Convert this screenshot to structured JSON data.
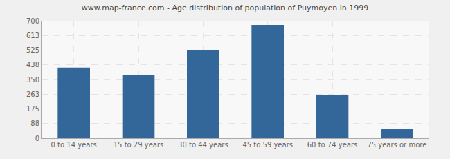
{
  "chart_data": {
    "type": "bar",
    "title": "www.map-france.com - Age distribution of population of Puymoyen in 1999",
    "categories": [
      "0 to 14 years",
      "15 to 29 years",
      "30 to 44 years",
      "45 to 59 years",
      "60 to 74 years",
      "75 years or more"
    ],
    "values": [
      421,
      379,
      527,
      675,
      259,
      57
    ],
    "color": "#336699",
    "ylim": [
      0,
      700
    ],
    "yticks": [
      0,
      88,
      175,
      263,
      350,
      438,
      525,
      613,
      700
    ],
    "grid": true
  }
}
